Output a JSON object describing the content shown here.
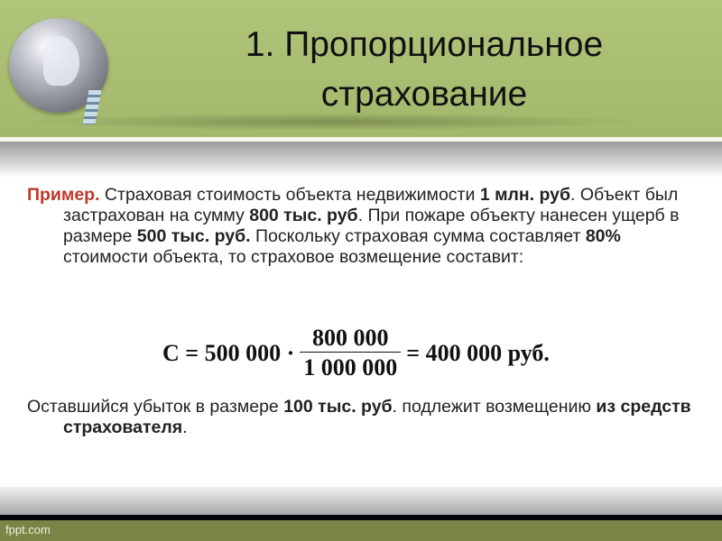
{
  "slide": {
    "title_line1": "1. Пропорциональное",
    "title_line2": "страхование",
    "example": {
      "label": "Пример.",
      "t1": " Страховая стоимость объекта недвижимости ",
      "b1": "1 млн. руб",
      "t2": ". Объект был застрахован на сумму ",
      "b2": "800 тыс. руб",
      "t3": ". При пожаре объекту нанесен ущерб в размере ",
      "b3": "500 тыс. руб.",
      "t4": " Поскольку страховая сумма составляет ",
      "b4": "80%",
      "t5": " стоимости объекта, то страховое возмещение составит:"
    },
    "formula": {
      "lhs": "C = 500 000 ·",
      "numerator": "800 000",
      "denominator": "1 000 000",
      "rhs": "= 400 000 руб."
    },
    "remainder": {
      "t1": "Оставшийся убыток в размере ",
      "b1": "100 тыс. руб",
      "t2": ". подлежит возмещению ",
      "b2": "из средств страхователя",
      "t3": "."
    },
    "footer": "fppt.com"
  },
  "colors": {
    "header": "#a9bd72",
    "footer": "#7a8647",
    "accent_red": "#c0392b"
  },
  "icons": {
    "logo": "globe-icon"
  }
}
